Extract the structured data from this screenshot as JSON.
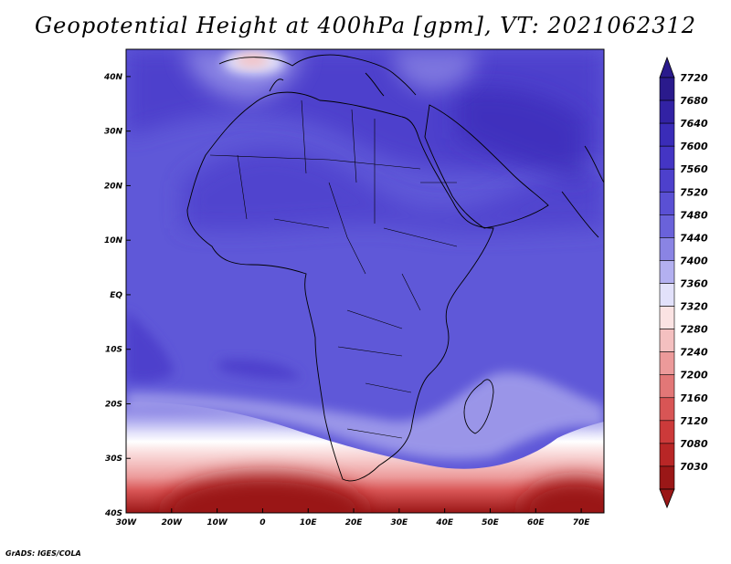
{
  "title": "Geopotential Height at 400hPa [gpm], VT: 2021062312",
  "credit": "GrADS: IGES/COLA",
  "map": {
    "lon_range": [
      -30,
      75
    ],
    "lat_range": [
      -40,
      45
    ],
    "lon_ticks": [
      {
        "lon": -30,
        "label": "30W"
      },
      {
        "lon": -20,
        "label": "20W"
      },
      {
        "lon": -10,
        "label": "10W"
      },
      {
        "lon": 0,
        "label": "0"
      },
      {
        "lon": 10,
        "label": "10E"
      },
      {
        "lon": 20,
        "label": "20E"
      },
      {
        "lon": 30,
        "label": "30E"
      },
      {
        "lon": 40,
        "label": "40E"
      },
      {
        "lon": 50,
        "label": "50E"
      },
      {
        "lon": 60,
        "label": "60E"
      },
      {
        "lon": 70,
        "label": "70E"
      }
    ],
    "lat_ticks": [
      {
        "lat": 40,
        "label": "40N"
      },
      {
        "lat": 30,
        "label": "30N"
      },
      {
        "lat": 20,
        "label": "20N"
      },
      {
        "lat": 10,
        "label": "10N"
      },
      {
        "lat": 0,
        "label": "EQ"
      },
      {
        "lat": -10,
        "label": "10S"
      },
      {
        "lat": -20,
        "label": "20S"
      },
      {
        "lat": -30,
        "label": "30S"
      },
      {
        "lat": -40,
        "label": "40S"
      }
    ]
  },
  "colorbar": {
    "levels": [
      "7720",
      "7680",
      "7640",
      "7600",
      "7560",
      "7520",
      "7480",
      "7440",
      "7400",
      "7360",
      "7320",
      "7280",
      "7240",
      "7200",
      "7160",
      "7120",
      "7080",
      "7030"
    ],
    "colors": [
      "#2a1a8c",
      "#3222a4",
      "#3a2cb8",
      "#4435c4",
      "#4d40cc",
      "#5a50d4",
      "#6a62da",
      "#8a84e4",
      "#b3b0f0",
      "#e2e1fa",
      "#fbe3e3",
      "#f4c0c0",
      "#ec9a9a",
      "#e27777",
      "#d85555",
      "#cc3a3a",
      "#b82626",
      "#9a1717"
    ]
  }
}
